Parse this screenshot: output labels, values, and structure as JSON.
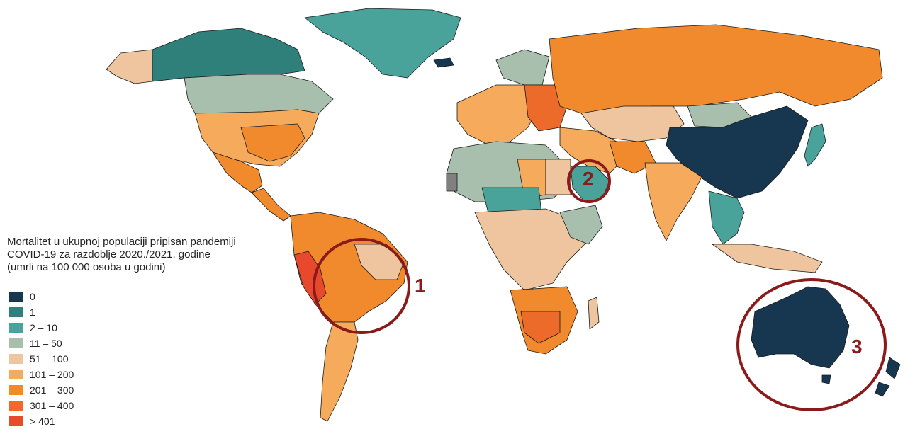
{
  "legend": {
    "title_lines": [
      "Mortalitet u ukupnoj populaciji pripisan pandemiji",
      "COVID-19 za razdoblje 2020./2021. godine",
      "(umrli na 100 000 osoba u godini)"
    ],
    "items": [
      {
        "label": "0",
        "color": "#17364f"
      },
      {
        "label": "1",
        "color": "#2f7f7b"
      },
      {
        "label": "2 – 10",
        "color": "#4aa39a"
      },
      {
        "label": "11 – 50",
        "color": "#a7bfac"
      },
      {
        "label": "51 – 100",
        "color": "#eec59e"
      },
      {
        "label": "101 – 200",
        "color": "#f6ab5c"
      },
      {
        "label": "201 – 300",
        "color": "#f08a2c"
      },
      {
        "label": "301 – 400",
        "color": "#ec6a2a"
      },
      {
        "label": "> 401",
        "color": "#e8482c"
      }
    ]
  },
  "callouts": [
    {
      "number": "1",
      "region": "Brazil"
    },
    {
      "number": "2",
      "region": "Saudi Arabia"
    },
    {
      "number": "3",
      "region": "Australia"
    }
  ],
  "colors": {
    "callout_ring": "#8b1a1a",
    "border": "#1a1a1a",
    "no_data": "#808080"
  }
}
